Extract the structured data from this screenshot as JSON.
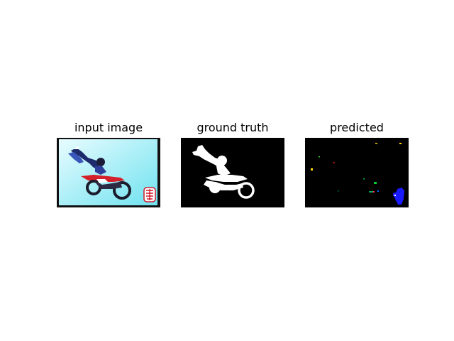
{
  "panels": [
    {
      "title": "input image"
    },
    {
      "title": "ground truth"
    },
    {
      "title": "predicted"
    }
  ],
  "colors": {
    "background": "#ffffff",
    "sky_light": "#e8fcff",
    "sky_dark": "#6fe2ef",
    "mask_background": "#000000",
    "mask_foreground": "#ffffff",
    "prediction_blue": "#1a1aff",
    "seal_red": "#d21a2a",
    "bike_red": "#d3202a"
  }
}
